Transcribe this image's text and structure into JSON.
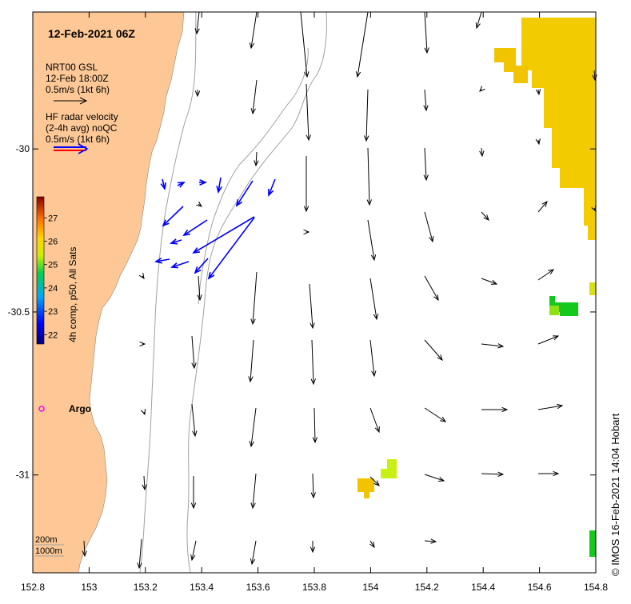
{
  "header": {
    "timestamp": "12-Feb-2021 06Z"
  },
  "legend": {
    "model": {
      "line1": "NRT00 GSL",
      "line2": "12-Feb 18:00Z",
      "line3": "0.5m/s (1kt 6h)",
      "arrow_color": "#000000"
    },
    "radar": {
      "line1": "HF radar velocity",
      "line2": "(2-4h avg) noQC",
      "line3": "0.5m/s (1kt 6h)",
      "arrow_colors": [
        "#0000ff",
        "#ff0000"
      ]
    },
    "depth": {
      "shallow": "200m",
      "deep": "1000m"
    }
  },
  "colorbar": {
    "label": "4h comp, p50, All Sats",
    "ticks": [
      "22",
      "23",
      "24",
      "25",
      "26",
      "27"
    ],
    "range": [
      21.6,
      27.9
    ]
  },
  "axes": {
    "xticks": [
      "152.8",
      "153",
      "153.2",
      "153.4",
      "153.6",
      "153.8",
      "154",
      "154.2",
      "154.4",
      "154.6",
      "154.8"
    ],
    "yticks": [
      "-30",
      "-30.5",
      "-31"
    ]
  },
  "annotations": {
    "argo_label": "Argo",
    "argo_color": "#ff00ff"
  },
  "credit": "© IMOS 16-Feb-2021 14:04 Hobart",
  "colors": {
    "land": "#fdc896",
    "model_arrow": "#000000",
    "radar_arrow": "#0000ff",
    "sst_warm": "#f2cc00",
    "sst_mid": "#c8e614",
    "sst_green": "#14c81e",
    "isobath": "#999999"
  }
}
